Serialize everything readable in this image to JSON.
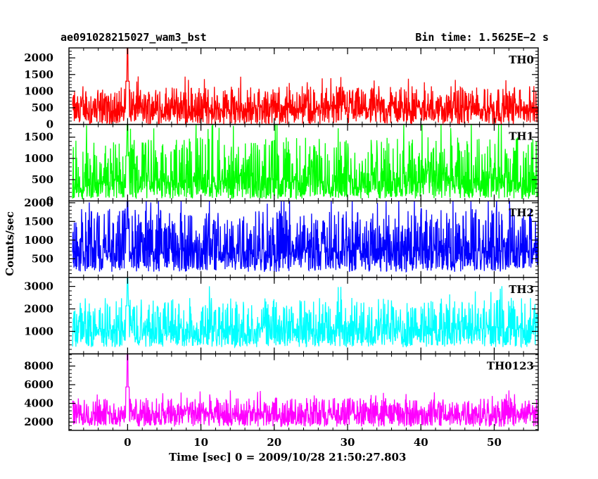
{
  "header": {
    "source": "ae091028215027_wam3_bst",
    "bin_time": "Bin time: 1.5625E−2 s"
  },
  "chart_data": {
    "type": "line",
    "xlabel": "Time [sec] 0 = 2009/10/28 21:50:27.803",
    "ylabel": "Counts/sec",
    "xlim": [
      -8,
      56
    ],
    "x_ticks": [
      0,
      10,
      20,
      30,
      40,
      50
    ],
    "x_range_data": [
      -7.5,
      56
    ],
    "panels": [
      {
        "name": "TH0",
        "color": "#ff0000",
        "ylim": [
          0,
          2300
        ],
        "yticks": [
          0,
          500,
          1000,
          1500,
          2000
        ],
        "baseline": 480,
        "noise_low": 0,
        "noise_high": 1150,
        "peak_time": 0,
        "peak_value": 2300
      },
      {
        "name": "TH1",
        "color": "#00ff00",
        "ylim": [
          0,
          1800
        ],
        "yticks": [
          0,
          500,
          1000,
          1500
        ],
        "baseline": 450,
        "noise_low": 50,
        "noise_high": 1500,
        "peak_time": 0,
        "peak_value": 1800
      },
      {
        "name": "TH2",
        "color": "#0000ff",
        "ylim": [
          0,
          2050
        ],
        "yticks": [
          500,
          1000,
          1500,
          2000
        ],
        "baseline": 700,
        "noise_low": 150,
        "noise_high": 1850,
        "peak_time": 0,
        "peak_value": 2050
      },
      {
        "name": "TH3",
        "color": "#00ffff",
        "ylim": [
          0,
          3400
        ],
        "yticks": [
          1000,
          2000,
          3000
        ],
        "baseline": 1100,
        "noise_low": 300,
        "noise_high": 2500,
        "peak_time": 0,
        "peak_value": 3400
      },
      {
        "name": "TH0123",
        "color": "#ff00ff",
        "ylim": [
          1100,
          9300
        ],
        "yticks": [
          2000,
          4000,
          6000,
          8000
        ],
        "baseline": 2850,
        "noise_low": 1500,
        "noise_high": 4600,
        "peak_time": 0,
        "peak_value": 9300
      }
    ]
  }
}
